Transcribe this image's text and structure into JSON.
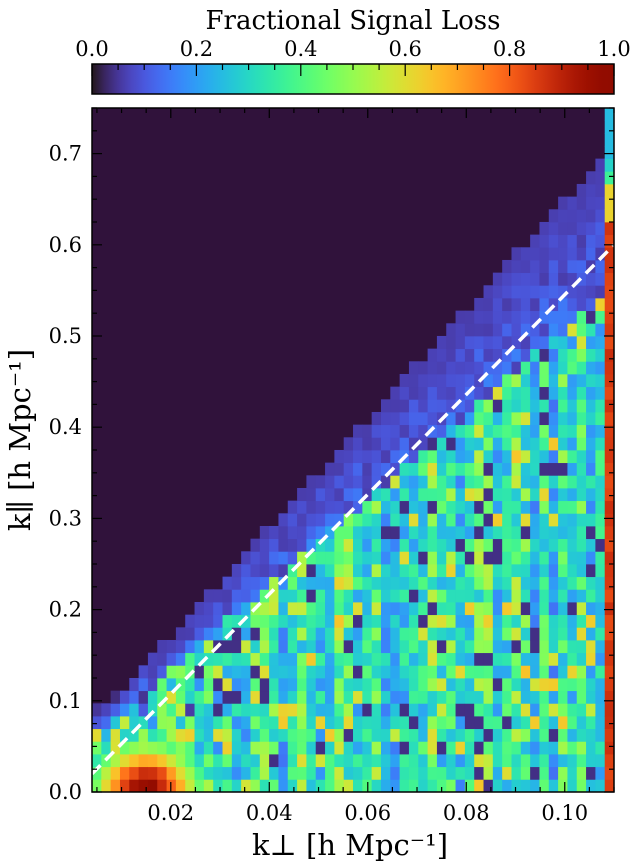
{
  "chart_data": {
    "type": "heatmap",
    "title": "Fractional Signal Loss",
    "xlabel": "k⊥ [h Mpc⁻¹]",
    "ylabel": "k∥ [h Mpc⁻¹]",
    "xlim": [
      0.004,
      0.11
    ],
    "ylim": [
      0.0,
      0.75
    ],
    "xticks": [
      "0.02",
      "0.04",
      "0.06",
      "0.08",
      "0.10"
    ],
    "xtick_values": [
      0.02,
      0.04,
      0.06,
      0.08,
      0.1
    ],
    "yticks": [
      "0.0",
      "0.1",
      "0.2",
      "0.3",
      "0.4",
      "0.5",
      "0.6",
      "0.7"
    ],
    "ytick_values": [
      0.0,
      0.1,
      0.2,
      0.3,
      0.4,
      0.5,
      0.6,
      0.7
    ],
    "colorbar": {
      "label": "Fractional Signal Loss",
      "range": [
        0.0,
        1.0
      ],
      "ticks": [
        "0.0",
        "0.2",
        "0.4",
        "0.6",
        "0.8",
        "1.0"
      ],
      "tick_values": [
        0.0,
        0.2,
        0.4,
        0.6,
        0.8,
        1.0
      ],
      "colormap": "turbo"
    },
    "grid": {
      "x_bins": 56,
      "y_bins": 54,
      "x_start": 0.004,
      "x_step": 0.001893,
      "y_step": 0.01389
    },
    "structure": {
      "horizon_line": {
        "x": [
          0.004,
          0.11
        ],
        "y": [
          0.02,
          0.6
        ],
        "style": "white dashed"
      },
      "last_column_value": 0.88,
      "low_k_peak": 1.0
    },
    "colors": {
      "background": "#30123b",
      "line": "#ffffff"
    }
  }
}
